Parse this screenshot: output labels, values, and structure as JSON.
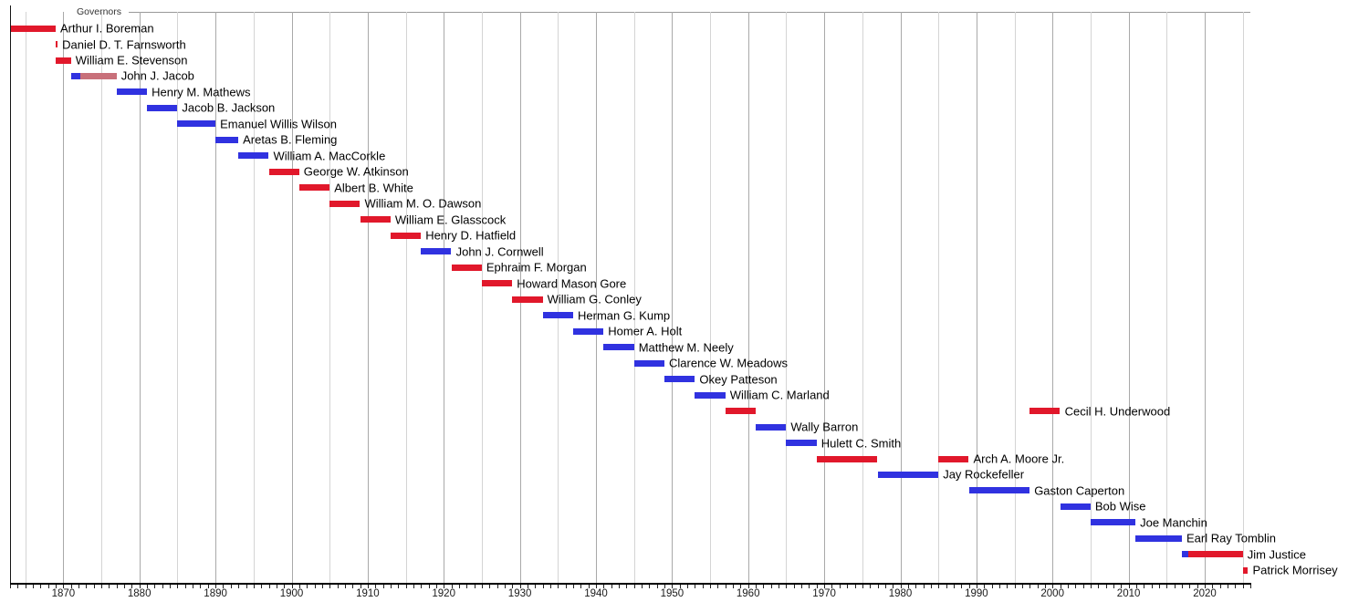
{
  "chart_data": {
    "type": "bar",
    "subtype": "gantt-timeline",
    "title": "Governors",
    "legend_position": "top-left",
    "grid": true,
    "x_axis": {
      "min": 1863,
      "max": 2026,
      "gridline_step_years": 5,
      "major_step_years": 10,
      "tick_labels": [
        "1870",
        "1880",
        "1890",
        "1900",
        "1910",
        "1920",
        "1930",
        "1940",
        "1950",
        "1960",
        "1970",
        "1980",
        "1990",
        "2000",
        "2010",
        "2020"
      ]
    },
    "party_colors": {
      "republican": "#E1182B",
      "democratic": "#3032E0",
      "independent": "#C8707A"
    },
    "grid_colors": {
      "minor": "#D4D4D4",
      "major": "#A9A9A9"
    },
    "governors": [
      {
        "name": "Arthur I. Boreman",
        "segments": [
          {
            "from": 1863,
            "to": 1869,
            "party": "republican"
          }
        ]
      },
      {
        "name": "Daniel D. T. Farnsworth",
        "segments": [
          {
            "from": 1869,
            "to": 1869.25,
            "party": "republican"
          }
        ]
      },
      {
        "name": "William E. Stevenson",
        "segments": [
          {
            "from": 1869,
            "to": 1871,
            "party": "republican"
          }
        ]
      },
      {
        "name": "John J. Jacob",
        "segments": [
          {
            "from": 1871,
            "to": 1872.2,
            "party": "democratic"
          },
          {
            "from": 1872.2,
            "to": 1877,
            "party": "independent"
          }
        ]
      },
      {
        "name": "Henry M. Mathews",
        "segments": [
          {
            "from": 1877,
            "to": 1881,
            "party": "democratic"
          }
        ]
      },
      {
        "name": "Jacob B. Jackson",
        "segments": [
          {
            "from": 1881,
            "to": 1885,
            "party": "democratic"
          }
        ]
      },
      {
        "name": "Emanuel Willis Wilson",
        "segments": [
          {
            "from": 1885,
            "to": 1890,
            "party": "democratic"
          }
        ]
      },
      {
        "name": "Aretas B. Fleming",
        "segments": [
          {
            "from": 1890,
            "to": 1893,
            "party": "democratic"
          }
        ]
      },
      {
        "name": "William A. MacCorkle",
        "segments": [
          {
            "from": 1893,
            "to": 1897,
            "party": "democratic"
          }
        ]
      },
      {
        "name": "George W. Atkinson",
        "segments": [
          {
            "from": 1897,
            "to": 1901,
            "party": "republican"
          }
        ]
      },
      {
        "name": "Albert B. White",
        "segments": [
          {
            "from": 1901,
            "to": 1905,
            "party": "republican"
          }
        ]
      },
      {
        "name": "William M. O. Dawson",
        "segments": [
          {
            "from": 1905,
            "to": 1909,
            "party": "republican"
          }
        ]
      },
      {
        "name": "William E. Glasscock",
        "segments": [
          {
            "from": 1909,
            "to": 1913,
            "party": "republican"
          }
        ]
      },
      {
        "name": "Henry D. Hatfield",
        "segments": [
          {
            "from": 1913,
            "to": 1917,
            "party": "republican"
          }
        ]
      },
      {
        "name": "John J. Cornwell",
        "segments": [
          {
            "from": 1917,
            "to": 1921,
            "party": "democratic"
          }
        ]
      },
      {
        "name": "Ephraim F. Morgan",
        "segments": [
          {
            "from": 1921,
            "to": 1925,
            "party": "republican"
          }
        ]
      },
      {
        "name": "Howard Mason Gore",
        "segments": [
          {
            "from": 1925,
            "to": 1929,
            "party": "republican"
          }
        ]
      },
      {
        "name": "William G. Conley",
        "segments": [
          {
            "from": 1929,
            "to": 1933,
            "party": "republican"
          }
        ]
      },
      {
        "name": "Herman G. Kump",
        "segments": [
          {
            "from": 1933,
            "to": 1937,
            "party": "democratic"
          }
        ]
      },
      {
        "name": "Homer A. Holt",
        "segments": [
          {
            "from": 1937,
            "to": 1941,
            "party": "democratic"
          }
        ]
      },
      {
        "name": "Matthew M. Neely",
        "segments": [
          {
            "from": 1941,
            "to": 1945,
            "party": "democratic"
          }
        ]
      },
      {
        "name": "Clarence W. Meadows",
        "segments": [
          {
            "from": 1945,
            "to": 1949,
            "party": "democratic"
          }
        ]
      },
      {
        "name": "Okey Patteson",
        "segments": [
          {
            "from": 1949,
            "to": 1953,
            "party": "democratic"
          }
        ]
      },
      {
        "name": "William C. Marland",
        "segments": [
          {
            "from": 1953,
            "to": 1957,
            "party": "democratic"
          }
        ]
      },
      {
        "name": "Cecil H. Underwood",
        "segments": [
          {
            "from": 1957,
            "to": 1961,
            "party": "republican"
          },
          {
            "from": 1997,
            "to": 2001,
            "party": "republican"
          }
        ]
      },
      {
        "name": "Wally Barron",
        "segments": [
          {
            "from": 1961,
            "to": 1965,
            "party": "democratic"
          }
        ]
      },
      {
        "name": "Hulett C. Smith",
        "segments": [
          {
            "from": 1965,
            "to": 1969,
            "party": "democratic"
          }
        ]
      },
      {
        "name": "Arch A. Moore Jr.",
        "segments": [
          {
            "from": 1969,
            "to": 1977,
            "party": "republican"
          },
          {
            "from": 1985,
            "to": 1989,
            "party": "republican"
          }
        ]
      },
      {
        "name": "Jay Rockefeller",
        "segments": [
          {
            "from": 1977,
            "to": 1985,
            "party": "democratic"
          }
        ]
      },
      {
        "name": "Gaston Caperton",
        "segments": [
          {
            "from": 1989,
            "to": 1997,
            "party": "democratic"
          }
        ]
      },
      {
        "name": "Bob Wise",
        "segments": [
          {
            "from": 2001,
            "to": 2005,
            "party": "democratic"
          }
        ]
      },
      {
        "name": "Joe Manchin",
        "segments": [
          {
            "from": 2005,
            "to": 2010.9,
            "party": "democratic"
          }
        ]
      },
      {
        "name": "Earl Ray Tomblin",
        "segments": [
          {
            "from": 2010.9,
            "to": 2017,
            "party": "democratic"
          }
        ]
      },
      {
        "name": "Jim Justice",
        "segments": [
          {
            "from": 2017,
            "to": 2017.8,
            "party": "democratic"
          },
          {
            "from": 2017.8,
            "to": 2025,
            "party": "republican"
          }
        ]
      },
      {
        "name": "Patrick Morrisey",
        "segments": [
          {
            "from": 2025,
            "to": 2025.7,
            "party": "republican"
          }
        ]
      }
    ]
  }
}
